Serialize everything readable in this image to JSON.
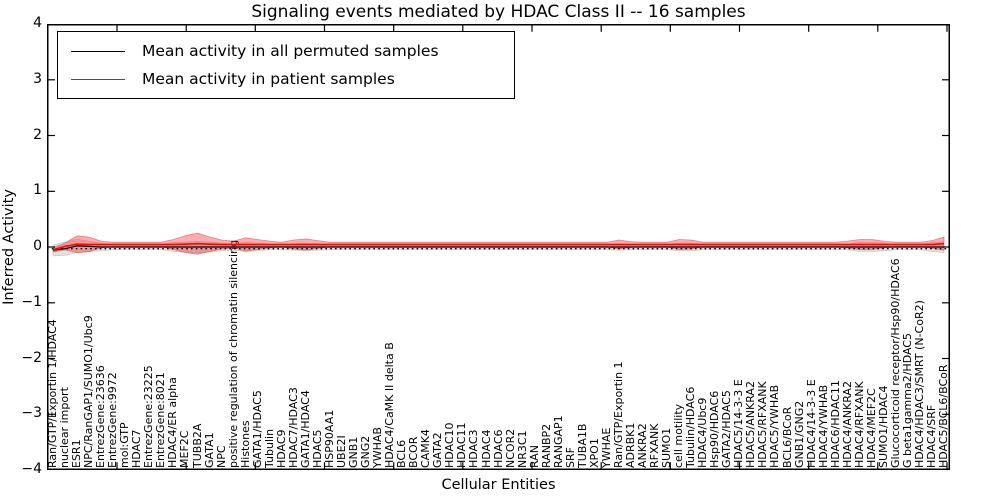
{
  "title": "Signaling events mediated by HDAC Class II -- 16 samples",
  "legend": [
    {
      "label": "Mean activity in all permuted samples",
      "color": "#000000"
    },
    {
      "label": "Mean activity in patient samples",
      "color": "#ff0000"
    }
  ],
  "chart_data": {
    "type": "line",
    "title": "Signaling events mediated by HDAC Class II -- 16 samples",
    "xlabel": "Cellular Entities",
    "ylabel": "Inferred Activity",
    "ylim": [
      -4,
      4
    ],
    "y_tick_values": [
      4,
      3,
      2,
      1,
      0,
      -1,
      -2,
      -3,
      -4
    ],
    "y_tick_labels": [
      "4",
      "3",
      "2",
      "1",
      "0",
      "−1",
      "−2",
      "−3",
      "−4"
    ],
    "grid": false,
    "legend_position": "upper left",
    "frame_color": "#000000",
    "baseline": {
      "value": -0.03,
      "style": "dotted",
      "color": "#000000"
    },
    "categories": [
      "Ran/GTP/Exportin 1/HDAC4",
      "nuclear import",
      "ESR1",
      "NPC/RanGAP1/SUMO1/Ubc9",
      "EntrezGene:23636",
      "EntrezGene:9972",
      "mol:GTP",
      "HDAC7",
      "EntrezGene:23225",
      "EntrezGene:8021",
      "HDAC4/ER alpha",
      "MEF2C",
      "TUBB2A",
      "GATA1",
      "NPC",
      "positive regulation of chromatin silencing",
      "Histones",
      "GATA1/HDAC5",
      "Tubulin",
      "HDAC9",
      "HDAC7/HDAC3",
      "GATA1/HDAC4",
      "HDAC5",
      "HSP90AA1",
      "UBE2I",
      "GNB1",
      "GNG2",
      "YWHAB",
      "HDAC4/CaMK II delta B",
      "BCL6",
      "BCOR",
      "CAMK4",
      "GATA2",
      "HDAC10",
      "HDAC11",
      "HDAC3",
      "HDAC4",
      "HDAC6",
      "NCOR2",
      "NR3C1",
      "RAN",
      "RANBP2",
      "RANGAP1",
      "SRF",
      "TUBA1B",
      "XPO1",
      "YWHAE",
      "Ran/GTP/Exportin 1",
      "ADRBK1",
      "ANKRA2",
      "RFXANK",
      "SUMO1",
      "cell motility",
      "Tubulin/HDAC6",
      "HDAC4/Ubc9",
      "Hsp90/HDAC6",
      "GATA2/HDAC5",
      "HDAC5/14-3-3 E",
      "HDAC5/ANKRA2",
      "HDAC5/RFXANK",
      "HDAC5/YWHAB",
      "BCL6/BCoR",
      "GNB1/GNG2",
      "HDAC4/14-3-3 E",
      "HDAC4/YWHAB",
      "HDAC6/HDAC11",
      "HDAC4/ANKRA2",
      "HDAC4/RFXANK",
      "HDAC4/MEF2C",
      "SUMO1/HDAC4",
      "Glucocorticoid receptor/Hsp90/HDAC6",
      "G beta1gamma2/HDAC5",
      "HDAC4/HDAC3/SMRT (N-CoR2)",
      "HDAC4/SRF",
      "HDAC5/BCL6/BCoR"
    ],
    "series": [
      {
        "name": "Mean activity in all permuted samples",
        "color": "#000000",
        "band_color": "#999999",
        "band_opacity": 0.3,
        "values": [
          -0.06,
          -0.03,
          0.02,
          0.01,
          0,
          0,
          0,
          0,
          0,
          0,
          0,
          0,
          0,
          0,
          0,
          0,
          0,
          0,
          0,
          0,
          0,
          0,
          0,
          0,
          0,
          0,
          0,
          0,
          0,
          0,
          0,
          0,
          0,
          0,
          0,
          0,
          0,
          0,
          0,
          0,
          0,
          0,
          0,
          0,
          0,
          0,
          0,
          0,
          0,
          0,
          0,
          0,
          0,
          0,
          0,
          0,
          0,
          0,
          0,
          0,
          0,
          0,
          0,
          0,
          0,
          0,
          0,
          0,
          0,
          0,
          0,
          0,
          0,
          0,
          0
        ],
        "band_halfwidth": [
          0.1,
          0.12,
          0.12,
          0.09,
          0.07,
          0.05,
          0.05,
          0.05,
          0.05,
          0.05,
          0.08,
          0.09,
          0.1,
          0.09,
          0.07,
          0.06,
          0.08,
          0.07,
          0.05,
          0.05,
          0.06,
          0.07,
          0.06,
          0.05,
          0.05,
          0.05,
          0.05,
          0.05,
          0.05,
          0.05,
          0.05,
          0.05,
          0.05,
          0.05,
          0.05,
          0.05,
          0.05,
          0.05,
          0.05,
          0.05,
          0.05,
          0.05,
          0.05,
          0.05,
          0.05,
          0.05,
          0.05,
          0.06,
          0.05,
          0.05,
          0.05,
          0.05,
          0.07,
          0.07,
          0.05,
          0.05,
          0.05,
          0.05,
          0.05,
          0.05,
          0.05,
          0.05,
          0.05,
          0.05,
          0.05,
          0.05,
          0.05,
          0.08,
          0.08,
          0.07,
          0.05,
          0.05,
          0.05,
          0.08,
          0.1
        ]
      },
      {
        "name": "Mean activity in patient samples",
        "color": "#ff0000",
        "band_color": "#ff0000",
        "band_opacity": 0.32,
        "values": [
          -0.05,
          0.01,
          0.05,
          0.045,
          0.045,
          0.045,
          0.045,
          0.045,
          0.045,
          0.045,
          0.045,
          0.05,
          0.06,
          0.05,
          0.045,
          0.045,
          0.045,
          0.045,
          0.045,
          0.045,
          0.045,
          0.045,
          0.045,
          0.045,
          0.045,
          0.045,
          0.045,
          0.045,
          0.045,
          0.045,
          0.045,
          0.045,
          0.045,
          0.045,
          0.045,
          0.045,
          0.045,
          0.045,
          0.045,
          0.045,
          0.045,
          0.045,
          0.045,
          0.045,
          0.045,
          0.045,
          0.045,
          0.045,
          0.045,
          0.045,
          0.045,
          0.045,
          0.045,
          0.045,
          0.045,
          0.045,
          0.045,
          0.045,
          0.045,
          0.045,
          0.045,
          0.045,
          0.045,
          0.045,
          0.045,
          0.045,
          0.045,
          0.045,
          0.045,
          0.045,
          0.045,
          0.045,
          0.045,
          0.045,
          0.06
        ],
        "band_halfwidth": [
          0.04,
          0.06,
          0.15,
          0.13,
          0.06,
          0.04,
          0.04,
          0.04,
          0.04,
          0.04,
          0.09,
          0.15,
          0.19,
          0.13,
          0.08,
          0.06,
          0.12,
          0.09,
          0.06,
          0.04,
          0.08,
          0.1,
          0.07,
          0.04,
          0.04,
          0.04,
          0.04,
          0.04,
          0.04,
          0.04,
          0.04,
          0.04,
          0.04,
          0.04,
          0.04,
          0.04,
          0.04,
          0.04,
          0.04,
          0.04,
          0.04,
          0.04,
          0.04,
          0.04,
          0.04,
          0.04,
          0.04,
          0.08,
          0.05,
          0.04,
          0.04,
          0.04,
          0.09,
          0.08,
          0.04,
          0.04,
          0.04,
          0.04,
          0.04,
          0.04,
          0.04,
          0.04,
          0.04,
          0.04,
          0.04,
          0.04,
          0.06,
          0.09,
          0.09,
          0.06,
          0.04,
          0.04,
          0.04,
          0.07,
          0.12
        ]
      }
    ]
  }
}
